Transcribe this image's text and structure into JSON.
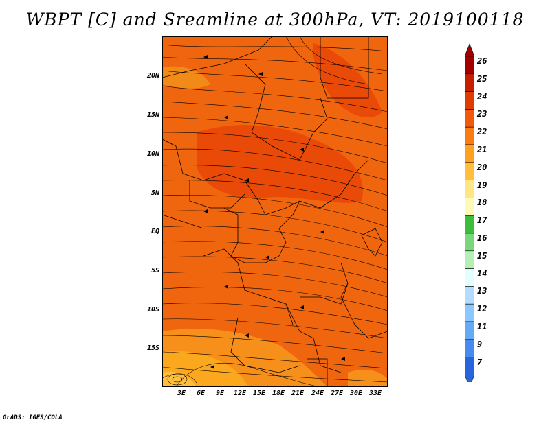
{
  "title": "WBPT [C] and Sreamline at 300hPa, VT: 2019100118",
  "footer": "GrADS: IGES/COLA",
  "lat_labels": [
    "20N",
    "15N",
    "10N",
    "5N",
    "EQ",
    "5S",
    "10S",
    "15S"
  ],
  "lon_labels": [
    "3E",
    "6E",
    "9E",
    "12E",
    "15E",
    "18E",
    "21E",
    "24E",
    "27E",
    "30E",
    "33E"
  ],
  "colorbar": {
    "labels": [
      "26",
      "25",
      "24",
      "23",
      "22",
      "21",
      "20",
      "19",
      "18",
      "17",
      "16",
      "15",
      "14",
      "13",
      "12",
      "11",
      "9",
      "7"
    ],
    "colors": [
      "#a50000",
      "#c81e00",
      "#e13c00",
      "#f05a0a",
      "#fa7d14",
      "#ffa01e",
      "#ffbe3c",
      "#ffe682",
      "#fffab4",
      "#3cbe3c",
      "#78d778",
      "#b4f0b4",
      "#e1ffff",
      "#b4dcff",
      "#8cc8ff",
      "#64aaf5",
      "#468cf0",
      "#2864dc"
    ]
  },
  "map_colors": {
    "base": "#f0660e",
    "warm": "#ea4a08",
    "cool": "#f7901a",
    "coolest": "#fca81e"
  }
}
